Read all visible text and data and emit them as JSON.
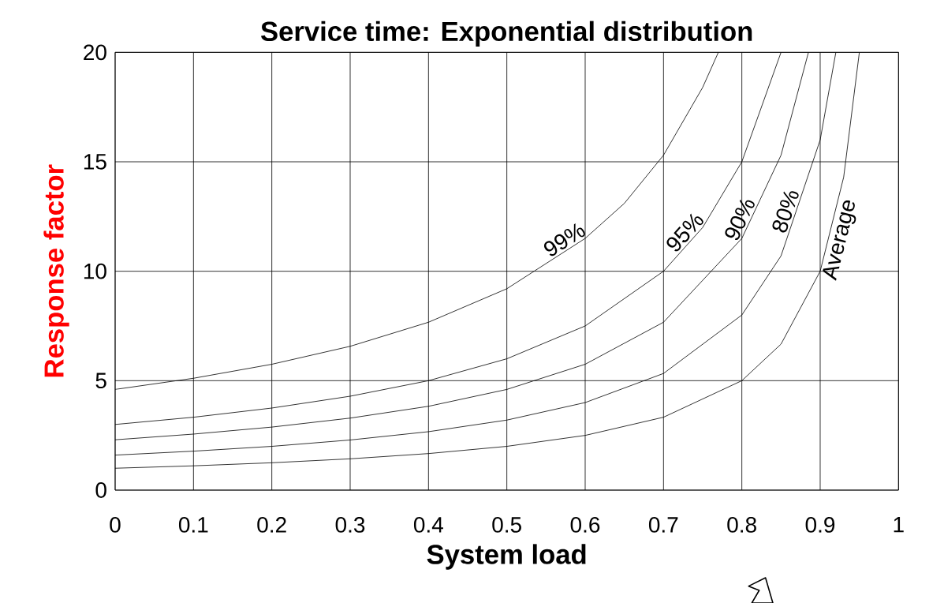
{
  "chart_data": {
    "type": "line",
    "title": "Service time: Exponential distribution",
    "xlabel": "System load",
    "ylabel": "Response factor",
    "xlim": [
      0,
      1
    ],
    "ylim": [
      0,
      20
    ],
    "xticks": [
      0,
      0.1,
      0.2,
      0.3,
      0.4,
      0.5,
      0.6,
      0.7,
      0.8,
      0.9,
      1
    ],
    "yticks": [
      0,
      5,
      10,
      15,
      20
    ],
    "grid": true,
    "marker": "none",
    "line_style": "solid",
    "series": [
      {
        "name": "99%",
        "color": "#000000",
        "x": [
          0,
          0.1,
          0.2,
          0.3,
          0.4,
          0.5,
          0.6,
          0.65,
          0.7,
          0.75,
          0.77
        ],
        "values": [
          4.6,
          5.11,
          5.75,
          6.57,
          7.67,
          9.2,
          11.5,
          13.1,
          15.3,
          18.4,
          20
        ]
      },
      {
        "name": "95%",
        "color": "#000000",
        "x": [
          0,
          0.1,
          0.2,
          0.3,
          0.4,
          0.5,
          0.6,
          0.7,
          0.75,
          0.8,
          0.85
        ],
        "values": [
          3,
          3.33,
          3.75,
          4.29,
          5,
          6,
          7.5,
          10,
          12,
          15,
          20
        ]
      },
      {
        "name": "90%",
        "color": "#000000",
        "x": [
          0,
          0.1,
          0.2,
          0.3,
          0.4,
          0.5,
          0.6,
          0.7,
          0.8,
          0.85,
          0.885
        ],
        "values": [
          2.3,
          2.56,
          2.88,
          3.29,
          3.83,
          4.6,
          5.75,
          7.67,
          11.5,
          15.3,
          20
        ]
      },
      {
        "name": "80%",
        "color": "#000000",
        "x": [
          0,
          0.1,
          0.2,
          0.3,
          0.4,
          0.5,
          0.6,
          0.7,
          0.8,
          0.85,
          0.9,
          0.92
        ],
        "values": [
          1.6,
          1.78,
          2,
          2.29,
          2.67,
          3.2,
          4,
          5.33,
          8,
          10.7,
          16,
          20
        ]
      },
      {
        "name": "Average",
        "color": "#000000",
        "x": [
          0,
          0.1,
          0.2,
          0.3,
          0.4,
          0.5,
          0.6,
          0.7,
          0.8,
          0.85,
          0.9,
          0.93,
          0.95
        ],
        "values": [
          1,
          1.11,
          1.25,
          1.43,
          1.67,
          2,
          2.5,
          3.33,
          5,
          6.67,
          10,
          14.3,
          20
        ]
      }
    ]
  }
}
